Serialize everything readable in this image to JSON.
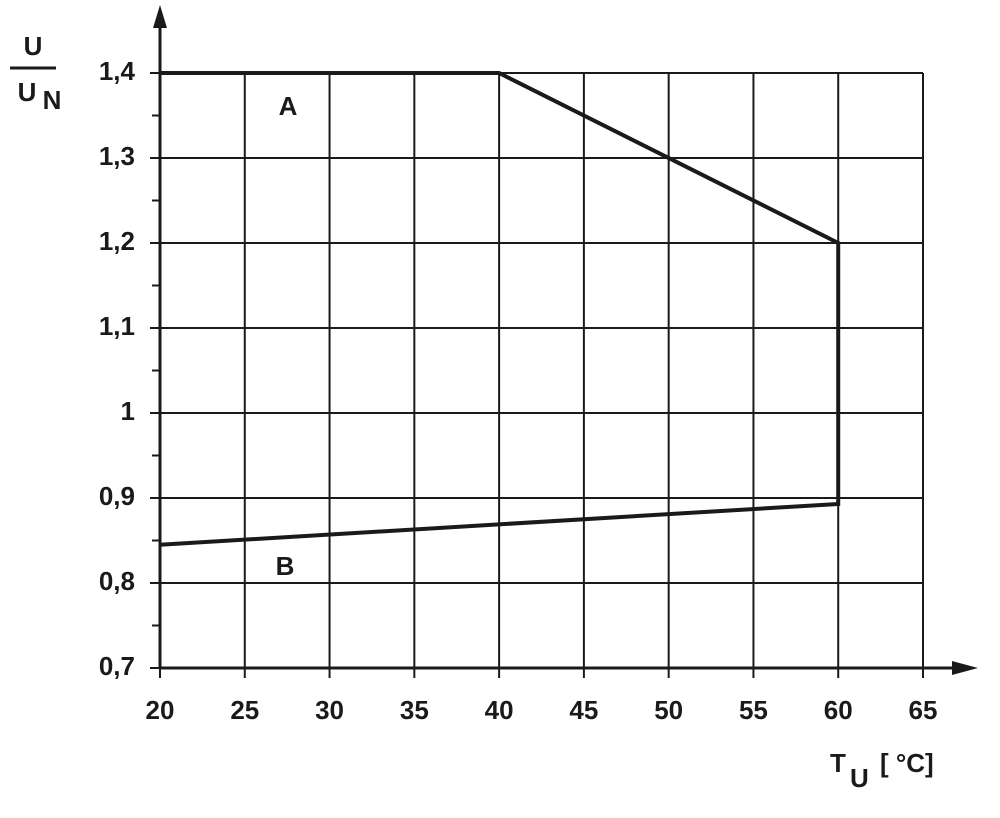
{
  "chart_data": {
    "type": "line",
    "ylabel": {
      "numerator": "U",
      "denominator": "U",
      "denominator_sub": "N"
    },
    "xlabel": {
      "text": "T",
      "sub": "U",
      "unit": "[ °C]"
    },
    "series": [
      {
        "color": "#1a1a1a",
        "x": [
          20,
          40,
          60,
          60,
          20
        ],
        "values": [
          1.4,
          1.4,
          1.2,
          0.893,
          0.845
        ]
      }
    ],
    "annotations": [
      "A",
      "B"
    ],
    "xlim": [
      20,
      65
    ],
    "xticks": [
      20,
      25,
      30,
      35,
      40,
      45,
      50,
      55,
      60,
      65
    ],
    "ylim": [
      0.7,
      1.4
    ],
    "yticks": [
      {
        "value": 0.7,
        "label": "0,7"
      },
      {
        "value": 0.8,
        "label": "0,8"
      },
      {
        "value": 0.9,
        "label": "0,9"
      },
      1,
      {
        "value": 1.1,
        "label": "1,1"
      },
      {
        "value": 1.2,
        "label": "1,2"
      },
      {
        "value": 1.3,
        "label": "1,3"
      },
      {
        "value": 1.4,
        "label": "1,4"
      }
    ],
    "yminorticks": [
      0.75,
      0.85,
      0.95,
      1.05,
      1.15,
      1.25,
      1.35
    ],
    "grid": true
  }
}
